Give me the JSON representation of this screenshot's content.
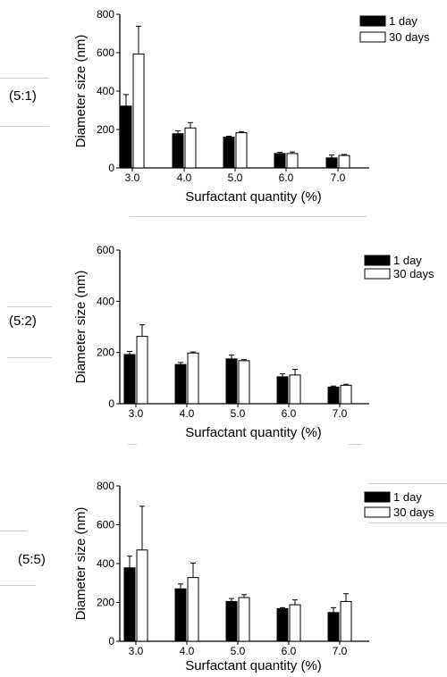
{
  "chart_data": [
    {
      "type": "bar",
      "panel_label": "(5:1)",
      "categories": [
        "3.0",
        "4.0",
        "5.0",
        "6.0",
        "7.0"
      ],
      "series": [
        {
          "name": "1 day",
          "color": "#000000",
          "values": [
            322,
            178,
            160,
            75,
            52
          ],
          "errors": [
            60,
            15,
            5,
            6,
            15
          ]
        },
        {
          "name": "30 days",
          "color": "#ffffff",
          "values": [
            593,
            208,
            183,
            75,
            65
          ],
          "errors": [
            145,
            28,
            6,
            8,
            5
          ]
        }
      ],
      "xlabel": "Surfactant quantity (%)",
      "ylabel": "Diameter size (nm)",
      "ylim": [
        0,
        800
      ],
      "yticks": [
        "0",
        "200",
        "400",
        "600",
        "800"
      ],
      "legend": "top-right"
    },
    {
      "type": "bar",
      "panel_label": "(5:2)",
      "categories": [
        "3.0",
        "4.0",
        "5.0",
        "6.0",
        "7.0"
      ],
      "series": [
        {
          "name": "1 day",
          "color": "#000000",
          "values": [
            192,
            153,
            175,
            105,
            65
          ],
          "errors": [
            12,
            8,
            15,
            12,
            4
          ]
        },
        {
          "name": "30 days",
          "color": "#ffffff",
          "values": [
            263,
            198,
            168,
            112,
            72
          ],
          "errors": [
            45,
            4,
            4,
            22,
            4
          ]
        }
      ],
      "xlabel": "Surfactant quantity (%)",
      "ylabel": "Diameter size (nm)",
      "ylim": [
        0,
        600
      ],
      "yticks": [
        "0",
        "200",
        "400",
        "600"
      ],
      "legend": "top-right"
    },
    {
      "type": "bar",
      "panel_label": "(5:5)",
      "categories": [
        "3.0",
        "4.0",
        "5.0",
        "6.0",
        "7.0"
      ],
      "series": [
        {
          "name": "1 day",
          "color": "#000000",
          "values": [
            378,
            270,
            205,
            168,
            148
          ],
          "errors": [
            60,
            25,
            15,
            5,
            25
          ]
        },
        {
          "name": "30 days",
          "color": "#ffffff",
          "values": [
            470,
            328,
            225,
            188,
            205
          ],
          "errors": [
            225,
            75,
            15,
            25,
            40
          ]
        }
      ],
      "xlabel": "Surfactant quantity (%)",
      "ylabel": "Diameter size (nm)",
      "ylim": [
        0,
        800
      ],
      "yticks": [
        "0",
        "200",
        "400",
        "600",
        "800"
      ],
      "legend": "top-right"
    }
  ]
}
